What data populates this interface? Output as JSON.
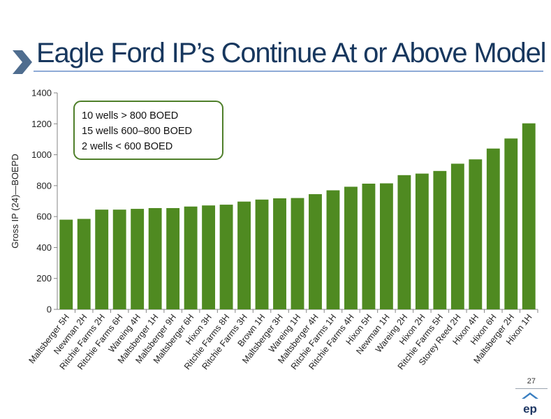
{
  "slide": {
    "title": "Eagle Ford IP’s Continue At or Above Model",
    "page_number": "27",
    "colors": {
      "title": "#17375e",
      "accent_line": "#8eaad6",
      "chevron": "#4f6d8f"
    },
    "icons": {
      "chevron": "chevron-right-icon",
      "logo": "ep-logo-icon"
    }
  },
  "chart_data": {
    "type": "bar",
    "title": "",
    "xlabel": "",
    "ylabel": "Gross IP (24)—BOEPD",
    "ylim": [
      0,
      1400
    ],
    "yticks": [
      0,
      200,
      400,
      600,
      800,
      1000,
      1200,
      1400
    ],
    "grid": false,
    "bar_color": "#4f8a21",
    "categories": [
      "Maltsberger 5H",
      "Newman 2H",
      "Ritchie Farms 2H",
      "Ritchie Farms 6H",
      "Wareing 4H",
      "Maltsberger 1H",
      "Maltsberger 9H",
      "Maltsberger 6H",
      "Hixon 3H",
      "Ritchie Farms 8H",
      "Ritchie Farms 3H",
      "Brown 1H",
      "Maltsberger 3H",
      "Wareing 1H",
      "Maltsberger 4H",
      "Ritchie Farms 1H",
      "Ritchie Farms 4H",
      "Hixon 5H",
      "Newman 1H",
      "Wareing 2H",
      "Hixon 2H",
      "Ritchie Farms 5H",
      "Storey Reed 2H",
      "Hixon 4H",
      "Hixon 6H",
      "Maltsberger 2H",
      "Hixon 1H"
    ],
    "values": [
      580,
      585,
      645,
      645,
      650,
      655,
      655,
      665,
      672,
      677,
      697,
      710,
      718,
      720,
      745,
      770,
      793,
      813,
      815,
      868,
      878,
      895,
      942,
      970,
      1040,
      1105,
      1203
    ],
    "annotation": [
      "10 wells > 800 BOED",
      "15 wells 600–800 BOED",
      "2 wells < 600 BOED"
    ]
  }
}
